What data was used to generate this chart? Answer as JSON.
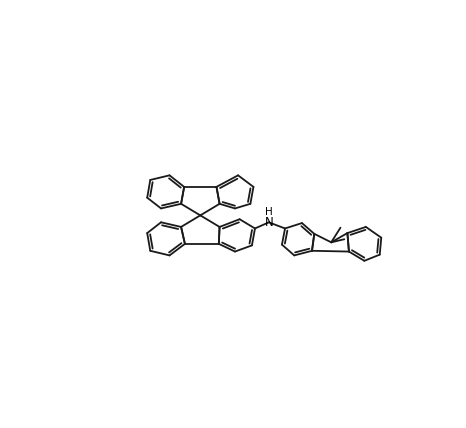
{
  "bg_color": "#ffffff",
  "line_color": "#1a1a1a",
  "line_width": 1.3,
  "fig_width": 4.66,
  "fig_height": 4.28,
  "dpi": 100
}
